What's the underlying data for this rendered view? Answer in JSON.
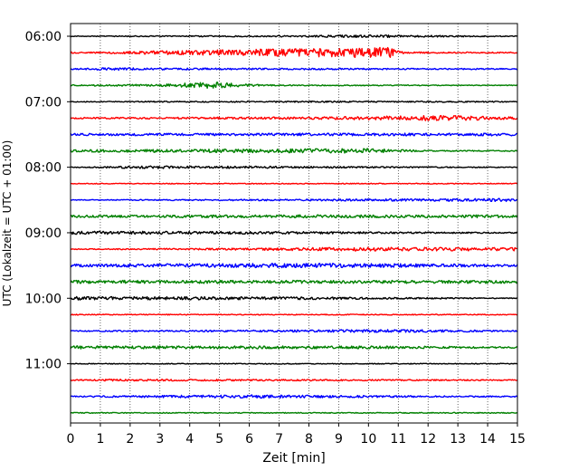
{
  "chart_data": {
    "type": "line",
    "chart_kind": "helicorder",
    "xlabel": "Zeit  [min]",
    "ylabel": "UTC (Lokalzeit = UTC + 01:00)",
    "xlim": [
      0,
      15
    ],
    "x_ticks": [
      0,
      1,
      2,
      3,
      4,
      5,
      6,
      7,
      8,
      9,
      10,
      11,
      12,
      13,
      14,
      15
    ],
    "x_tick_labels": [
      "0",
      "1",
      "2",
      "3",
      "4",
      "5",
      "6",
      "7",
      "8",
      "9",
      "10",
      "11",
      "12",
      "13",
      "14",
      "15"
    ],
    "vertical_grid": "dotted",
    "trace_start": "06:00",
    "trace_interval_min": 15,
    "y_tick_labels": [
      "06:00",
      "07:00",
      "08:00",
      "09:00",
      "10:00",
      "11:00"
    ],
    "color_cycle": [
      "#000000",
      "#ff0000",
      "#0000ff",
      "#008000"
    ],
    "series": [
      {
        "values": [
          {
            "x": 0,
            "amp": 0.1
          },
          {
            "x": 7.5,
            "amp": 0.2
          },
          {
            "x": 10.1,
            "amp": 0.35
          },
          {
            "x": 12.8,
            "amp": 0.2
          },
          {
            "x": 15,
            "amp": 0.1
          }
        ]
      },
      {
        "values": [
          {
            "x": 0,
            "amp": 0.4
          },
          {
            "x": 0.3,
            "amp": 0.15
          },
          {
            "x": 10.7,
            "amp": 1.4
          },
          {
            "x": 11.2,
            "amp": 0.2
          },
          {
            "x": 15,
            "amp": 0.15
          }
        ]
      },
      {
        "values": [
          {
            "x": 0,
            "amp": 0.15
          },
          {
            "x": 1.3,
            "amp": 0.35
          },
          {
            "x": 3.3,
            "amp": 0.25
          },
          {
            "x": 15,
            "amp": 0.15
          }
        ]
      },
      {
        "values": [
          {
            "x": 0,
            "amp": 0.15
          },
          {
            "x": 3,
            "amp": 0.3
          },
          {
            "x": 4.8,
            "amp": 0.9
          },
          {
            "x": 5.8,
            "amp": 0.35
          },
          {
            "x": 7,
            "amp": 0.15
          },
          {
            "x": 15,
            "amp": 0.1
          }
        ]
      },
      {
        "values": [
          {
            "x": 0,
            "amp": 0.1
          },
          {
            "x": 7,
            "amp": 0.2
          },
          {
            "x": 15,
            "amp": 0.15
          }
        ]
      },
      {
        "values": [
          {
            "x": 0,
            "amp": 0.2
          },
          {
            "x": 8,
            "amp": 0.3
          },
          {
            "x": 12.5,
            "amp": 0.7
          },
          {
            "x": 15,
            "amp": 0.3
          }
        ]
      },
      {
        "values": [
          {
            "x": 0,
            "amp": 0.3
          },
          {
            "x": 15,
            "amp": 0.35
          }
        ]
      },
      {
        "values": [
          {
            "x": 0,
            "amp": 0.3
          },
          {
            "x": 10,
            "amp": 0.6
          },
          {
            "x": 11.3,
            "amp": 0.3
          },
          {
            "x": 12,
            "amp": 0.15
          },
          {
            "x": 15,
            "amp": 0.15
          }
        ]
      },
      {
        "values": [
          {
            "x": 0,
            "amp": 0.1
          },
          {
            "x": 2.5,
            "amp": 0.35
          },
          {
            "x": 15,
            "amp": 0.1
          }
        ]
      },
      {
        "values": [
          {
            "x": 0,
            "amp": 0.1
          },
          {
            "x": 15,
            "amp": 0.12
          }
        ]
      },
      {
        "values": [
          {
            "x": 0,
            "amp": 0.1
          },
          {
            "x": 13.5,
            "amp": 0.35
          },
          {
            "x": 15,
            "amp": 0.4
          }
        ]
      },
      {
        "values": [
          {
            "x": 0,
            "amp": 0.3
          },
          {
            "x": 8.5,
            "amp": 0.4
          },
          {
            "x": 15,
            "amp": 0.35
          }
        ]
      },
      {
        "values": [
          {
            "x": 0,
            "amp": 0.4
          },
          {
            "x": 5.3,
            "amp": 0.35
          },
          {
            "x": 15,
            "amp": 0.15
          }
        ]
      },
      {
        "values": [
          {
            "x": 0,
            "amp": 0.1
          },
          {
            "x": 6.5,
            "amp": 0.3
          },
          {
            "x": 8.3,
            "amp": 0.45
          },
          {
            "x": 15,
            "amp": 0.45
          }
        ]
      },
      {
        "values": [
          {
            "x": 0,
            "amp": 0.35
          },
          {
            "x": 7.6,
            "amp": 0.6
          },
          {
            "x": 15,
            "amp": 0.3
          }
        ]
      },
      {
        "values": [
          {
            "x": 0,
            "amp": 0.4
          },
          {
            "x": 15,
            "amp": 0.4
          }
        ]
      },
      {
        "values": [
          {
            "x": 0,
            "amp": 0.45
          },
          {
            "x": 7.8,
            "amp": 0.35
          },
          {
            "x": 15,
            "amp": 0.1
          }
        ]
      },
      {
        "values": [
          {
            "x": 0,
            "amp": 0.12
          },
          {
            "x": 15,
            "amp": 0.12
          }
        ]
      },
      {
        "values": [
          {
            "x": 0,
            "amp": 0.15
          },
          {
            "x": 8.5,
            "amp": 0.3
          },
          {
            "x": 10,
            "amp": 0.45
          },
          {
            "x": 15,
            "amp": 0.15
          }
        ]
      },
      {
        "values": [
          {
            "x": 0,
            "amp": 0.4
          },
          {
            "x": 10.5,
            "amp": 0.35
          },
          {
            "x": 15,
            "amp": 0.2
          }
        ]
      },
      {
        "values": [
          {
            "x": 0,
            "amp": 0.1
          },
          {
            "x": 15,
            "amp": 0.12
          }
        ]
      },
      {
        "values": [
          {
            "x": 0,
            "amp": 0.15
          },
          {
            "x": 1.4,
            "amp": 0.25
          },
          {
            "x": 15,
            "amp": 0.15
          }
        ]
      },
      {
        "values": [
          {
            "x": 0,
            "amp": 0.15
          },
          {
            "x": 6.5,
            "amp": 0.45
          },
          {
            "x": 8.5,
            "amp": 0.3
          },
          {
            "x": 15,
            "amp": 0.15
          }
        ]
      },
      {
        "values": [
          {
            "x": 0,
            "amp": 0.12
          },
          {
            "x": 15,
            "amp": 0.12
          }
        ]
      }
    ]
  }
}
